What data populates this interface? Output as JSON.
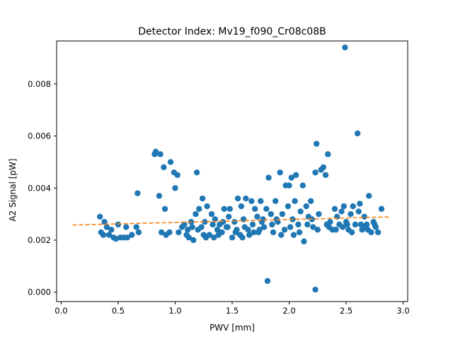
{
  "chart_data": {
    "type": "scatter",
    "title": "Detector Index: Mv19_f090_Cr08c08B",
    "xlabel": "PWV [mm]",
    "ylabel": "A2 Signal [pW]",
    "xlim": [
      -0.04,
      3.04
    ],
    "ylim": [
      -0.00036,
      0.00965
    ],
    "xticks": [
      0.0,
      0.5,
      1.0,
      1.5,
      2.0,
      2.5,
      3.0
    ],
    "xtick_labels": [
      "0.0",
      "0.5",
      "1.0",
      "1.5",
      "2.0",
      "2.5",
      "3.0"
    ],
    "yticks": [
      0.0,
      0.002,
      0.004,
      0.006,
      0.008
    ],
    "ytick_labels": [
      "0.000",
      "0.002",
      "0.004",
      "0.006",
      "0.008"
    ],
    "grid": false,
    "colors": {
      "scatter": "#1f77b4",
      "fit": "#ff7f0e",
      "axes": "#000000"
    },
    "series": [
      {
        "name": "measurements",
        "kind": "scatter",
        "points": [
          [
            0.34,
            0.0029
          ],
          [
            0.35,
            0.0023
          ],
          [
            0.37,
            0.0022
          ],
          [
            0.38,
            0.0027
          ],
          [
            0.4,
            0.0025
          ],
          [
            0.42,
            0.0022
          ],
          [
            0.44,
            0.0024
          ],
          [
            0.46,
            0.0021
          ],
          [
            0.48,
            0.00205
          ],
          [
            0.5,
            0.0026
          ],
          [
            0.52,
            0.0021
          ],
          [
            0.55,
            0.0021
          ],
          [
            0.57,
            0.0025
          ],
          [
            0.58,
            0.0021
          ],
          [
            0.62,
            0.0022
          ],
          [
            0.66,
            0.0025
          ],
          [
            0.67,
            0.0038
          ],
          [
            0.68,
            0.0023
          ],
          [
            0.82,
            0.0053
          ],
          [
            0.83,
            0.0054
          ],
          [
            0.86,
            0.0037
          ],
          [
            0.87,
            0.0053
          ],
          [
            0.88,
            0.0023
          ],
          [
            0.9,
            0.0048
          ],
          [
            0.91,
            0.0032
          ],
          [
            0.92,
            0.0022
          ],
          [
            0.95,
            0.0023
          ],
          [
            0.96,
            0.005
          ],
          [
            0.99,
            0.0046
          ],
          [
            1.0,
            0.004
          ],
          [
            1.02,
            0.0045
          ],
          [
            1.03,
            0.0023
          ],
          [
            1.06,
            0.0025
          ],
          [
            1.08,
            0.0026
          ],
          [
            1.1,
            0.0022
          ],
          [
            1.12,
            0.0021
          ],
          [
            1.14,
            0.0027
          ],
          [
            1.16,
            0.002
          ],
          [
            1.18,
            0.003
          ],
          [
            1.19,
            0.0046
          ],
          [
            1.2,
            0.0024
          ],
          [
            1.21,
            0.0032
          ],
          [
            1.23,
            0.0025
          ],
          [
            1.24,
            0.0036
          ],
          [
            1.26,
            0.0027
          ],
          [
            1.28,
            0.0033
          ],
          [
            1.3,
            0.0022
          ],
          [
            1.32,
            0.003
          ],
          [
            1.34,
            0.0021
          ],
          [
            1.35,
            0.0028
          ],
          [
            1.37,
            0.0024
          ],
          [
            1.39,
            0.0026
          ],
          [
            1.41,
            0.0023
          ],
          [
            1.43,
            0.0032
          ],
          [
            1.45,
            0.0025
          ],
          [
            1.47,
            0.0029
          ],
          [
            1.48,
            0.0032
          ],
          [
            1.5,
            0.0021
          ],
          [
            1.52,
            0.0027
          ],
          [
            1.54,
            0.0024
          ],
          [
            1.55,
            0.0036
          ],
          [
            1.57,
            0.0022
          ],
          [
            1.58,
            0.0033
          ],
          [
            1.6,
            0.0028
          ],
          [
            1.62,
            0.0036
          ],
          [
            1.64,
            0.0024
          ],
          [
            1.65,
            0.0022
          ],
          [
            1.67,
            0.0035
          ],
          [
            1.68,
            0.0026
          ],
          [
            1.7,
            0.0032
          ],
          [
            1.72,
            0.0029
          ],
          [
            1.73,
            0.0023
          ],
          [
            1.75,
            0.0035
          ],
          [
            1.76,
            0.0027
          ],
          [
            1.78,
            0.0025
          ],
          [
            1.8,
            0.0032
          ],
          [
            1.81,
            0.00043
          ],
          [
            1.82,
            0.0044
          ],
          [
            1.84,
            0.003
          ],
          [
            1.86,
            0.0023
          ],
          [
            1.88,
            0.0035
          ],
          [
            1.9,
            0.0027
          ],
          [
            1.92,
            0.0046
          ],
          [
            1.94,
            0.003
          ],
          [
            1.96,
            0.0024
          ],
          [
            1.97,
            0.0041
          ],
          [
            1.99,
            0.0033
          ],
          [
            2.0,
            0.0041
          ],
          [
            2.02,
            0.0044
          ],
          [
            2.03,
            0.0028
          ],
          [
            2.05,
            0.0035
          ],
          [
            2.06,
            0.0045
          ],
          [
            2.08,
            0.0026
          ],
          [
            2.1,
            0.0031
          ],
          [
            2.12,
            0.0041
          ],
          [
            2.13,
            0.00195
          ],
          [
            2.15,
            0.0033
          ],
          [
            2.17,
            0.0029
          ],
          [
            2.19,
            0.0035
          ],
          [
            2.21,
            0.0025
          ],
          [
            2.23,
            0.0046
          ],
          [
            2.23,
            0.0001
          ],
          [
            2.24,
            0.0057
          ],
          [
            2.26,
            0.003
          ],
          [
            2.28,
            0.0047
          ],
          [
            2.3,
            0.0048
          ],
          [
            2.32,
            0.0045
          ],
          [
            2.34,
            0.0053
          ],
          [
            2.36,
            0.0027
          ],
          [
            2.38,
            0.0024
          ],
          [
            2.4,
            0.0032
          ],
          [
            2.42,
            0.0029
          ],
          [
            2.44,
            0.0026
          ],
          [
            2.46,
            0.0031
          ],
          [
            2.48,
            0.0033
          ],
          [
            2.49,
            0.0094
          ],
          [
            2.5,
            0.0027
          ],
          [
            2.52,
            0.0024
          ],
          [
            2.54,
            0.003
          ],
          [
            2.56,
            0.0033
          ],
          [
            2.58,
            0.0026
          ],
          [
            2.6,
            0.0061
          ],
          [
            2.61,
            0.0031
          ],
          [
            2.62,
            0.0034
          ],
          [
            2.64,
            0.0024
          ],
          [
            2.66,
            0.0029
          ],
          [
            2.68,
            0.0026
          ],
          [
            2.7,
            0.0037
          ],
          [
            2.72,
            0.0023
          ],
          [
            2.74,
            0.0027
          ],
          [
            2.76,
            0.0025
          ],
          [
            2.78,
            0.0023
          ],
          [
            2.81,
            0.0032
          ],
          [
            1.15,
            0.0025
          ],
          [
            1.25,
            0.0022
          ],
          [
            1.33,
            0.0026
          ],
          [
            1.38,
            0.0022
          ],
          [
            1.46,
            0.0025
          ],
          [
            1.53,
            0.0023
          ],
          [
            1.61,
            0.0025
          ],
          [
            1.69,
            0.0023
          ],
          [
            1.77,
            0.0028
          ],
          [
            1.85,
            0.0026
          ],
          [
            1.93,
            0.0022
          ],
          [
            2.01,
            0.0025
          ],
          [
            2.09,
            0.0023
          ],
          [
            2.16,
            0.0026
          ],
          [
            2.25,
            0.0024
          ],
          [
            2.33,
            0.0026
          ],
          [
            2.41,
            0.0024
          ],
          [
            2.47,
            0.0025
          ],
          [
            2.55,
            0.0023
          ],
          [
            2.63,
            0.0026
          ],
          [
            2.69,
            0.0024
          ],
          [
            1.11,
            0.0024
          ],
          [
            1.27,
            0.0021
          ],
          [
            1.42,
            0.0027
          ],
          [
            1.59,
            0.0021
          ],
          [
            1.74,
            0.0024
          ],
          [
            1.89,
            0.0028
          ],
          [
            2.04,
            0.0022
          ],
          [
            2.2,
            0.0028
          ],
          [
            2.35,
            0.0025
          ],
          [
            2.51,
            0.0026
          ],
          [
            2.65,
            0.0025
          ],
          [
            2.75,
            0.0026
          ]
        ]
      },
      {
        "name": "linear fit",
        "kind": "line",
        "style": "dashed",
        "points": [
          [
            0.1,
            0.00258
          ],
          [
            2.88,
            0.00289
          ]
        ]
      }
    ]
  }
}
